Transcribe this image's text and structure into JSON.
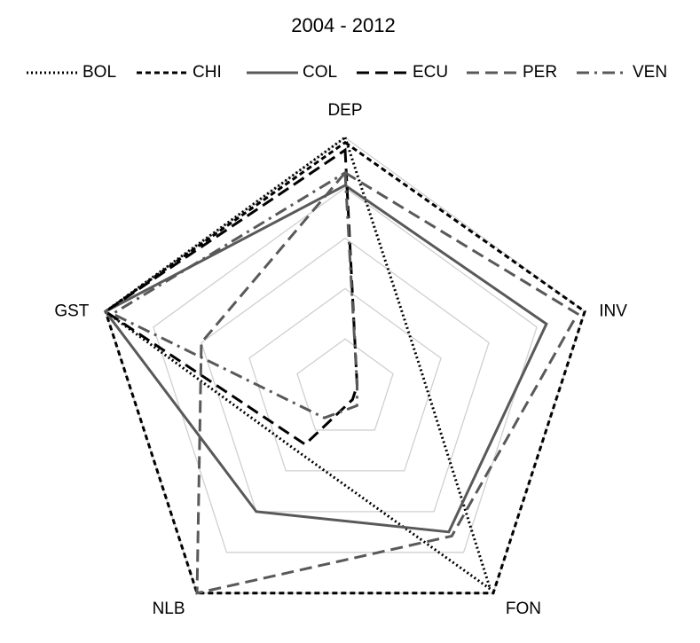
{
  "chart_data": {
    "type": "radar",
    "title": "2004 - 2012",
    "categories": [
      "DEP",
      "INV",
      "FON",
      "NLB",
      "GST"
    ],
    "ylim": [
      0,
      1
    ],
    "yticks": [
      0.2,
      0.4,
      0.6,
      0.8,
      1
    ],
    "grid": true,
    "legend": "top",
    "series": [
      {
        "name": "BOL",
        "color": "#000000",
        "dash": "dotted",
        "values": [
          1.0,
          0.31,
          0.98,
          0.31,
          1.0
        ]
      },
      {
        "name": "CHI",
        "color": "#000000",
        "dash": "dashed",
        "values": [
          0.98,
          1.0,
          1.0,
          1.0,
          1.0
        ]
      },
      {
        "name": "COL",
        "color": "#595959",
        "dash": "solid",
        "values": [
          0.81,
          0.84,
          0.7,
          0.6,
          1.0
        ]
      },
      {
        "name": "ECU",
        "color": "#000000",
        "dash": "long-dash",
        "values": [
          0.95,
          0.05,
          0.05,
          0.27,
          1.0
        ]
      },
      {
        "name": "PER",
        "color": "#595959",
        "dash": "long-dash",
        "values": [
          0.86,
          0.97,
          0.72,
          1.0,
          0.6
        ]
      },
      {
        "name": "VEN",
        "color": "#595959",
        "dash": "dash-dot",
        "values": [
          0.86,
          0.05,
          0.08,
          0.14,
          0.97
        ]
      }
    ]
  }
}
